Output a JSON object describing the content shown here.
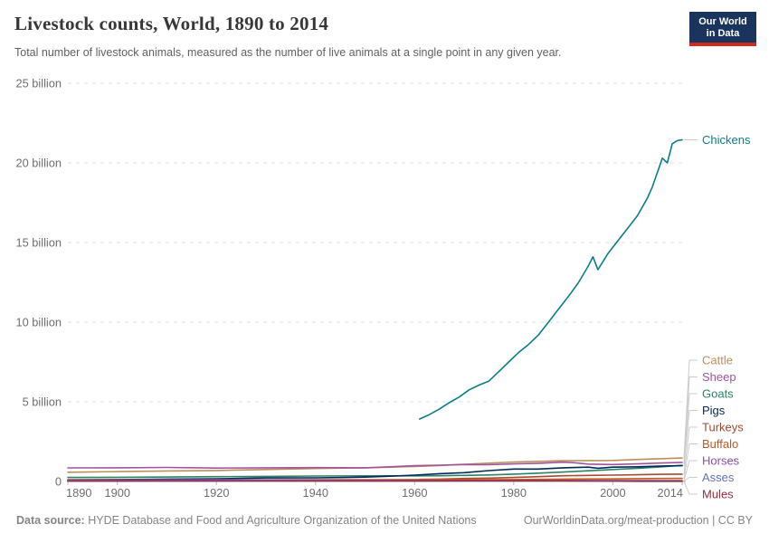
{
  "header": {
    "title": "Livestock counts, World, 1890 to 2014",
    "subtitle": "Total number of livestock animals, measured as the number of live animals at a single point in any given year.",
    "logo": {
      "line1": "Our World",
      "line2": "in Data",
      "bg_color": "#1A345D",
      "accent_color": "#CE2B1D"
    }
  },
  "footer": {
    "source_label": "Data source:",
    "source_text": " HYDE Database and Food and Agriculture Organization of the United Nations",
    "link_text": "OurWorldinData.org/meat-production | CC BY"
  },
  "chart_data": {
    "type": "line",
    "title": "Livestock counts, World, 1890 to 2014",
    "xlabel": "",
    "ylabel": "",
    "unit": "billion live animals",
    "grid": true,
    "legend_position": "right",
    "x_range": [
      1890,
      2014
    ],
    "y_range": [
      0,
      25
    ],
    "xticks": [
      1890,
      1900,
      1920,
      1940,
      1960,
      1980,
      2000,
      2014
    ],
    "yticks": [
      {
        "value": 0,
        "label": "0"
      },
      {
        "value": 5,
        "label": "5 billion"
      },
      {
        "value": 10,
        "label": "10 billion"
      },
      {
        "value": 15,
        "label": "15 billion"
      },
      {
        "value": 20,
        "label": "20 billion"
      },
      {
        "value": 25,
        "label": "25 billion"
      }
    ],
    "series": [
      {
        "name": "Chickens",
        "color": "#0B7E8A",
        "points": [
          [
            1961,
            3.92
          ],
          [
            1963,
            4.2
          ],
          [
            1965,
            4.55
          ],
          [
            1967,
            4.95
          ],
          [
            1969,
            5.3
          ],
          [
            1971,
            5.75
          ],
          [
            1973,
            6.05
          ],
          [
            1975,
            6.3
          ],
          [
            1977,
            6.9
          ],
          [
            1979,
            7.5
          ],
          [
            1981,
            8.1
          ],
          [
            1983,
            8.6
          ],
          [
            1985,
            9.2
          ],
          [
            1987,
            10.0
          ],
          [
            1989,
            10.8
          ],
          [
            1991,
            11.6
          ],
          [
            1993,
            12.45
          ],
          [
            1995,
            13.5
          ],
          [
            1996,
            14.1
          ],
          [
            1997,
            13.3
          ],
          [
            1999,
            14.3
          ],
          [
            2001,
            15.1
          ],
          [
            2003,
            15.9
          ],
          [
            2005,
            16.7
          ],
          [
            2007,
            17.8
          ],
          [
            2008,
            18.5
          ],
          [
            2009,
            19.4
          ],
          [
            2010,
            20.3
          ],
          [
            2011,
            20.0
          ],
          [
            2012,
            21.2
          ],
          [
            2013,
            21.4
          ],
          [
            2014,
            21.45
          ]
        ]
      },
      {
        "name": "Cattle",
        "color": "#BC8E5A",
        "points": [
          [
            1890,
            0.58
          ],
          [
            1900,
            0.62
          ],
          [
            1910,
            0.66
          ],
          [
            1920,
            0.69
          ],
          [
            1930,
            0.75
          ],
          [
            1940,
            0.81
          ],
          [
            1950,
            0.86
          ],
          [
            1960,
            0.94
          ],
          [
            1965,
            1.0
          ],
          [
            1970,
            1.08
          ],
          [
            1975,
            1.15
          ],
          [
            1980,
            1.22
          ],
          [
            1985,
            1.26
          ],
          [
            1990,
            1.3
          ],
          [
            1995,
            1.31
          ],
          [
            2000,
            1.32
          ],
          [
            2005,
            1.38
          ],
          [
            2010,
            1.43
          ],
          [
            2014,
            1.47
          ]
        ]
      },
      {
        "name": "Sheep",
        "color": "#A2559C",
        "points": [
          [
            1890,
            0.85
          ],
          [
            1900,
            0.86
          ],
          [
            1910,
            0.88
          ],
          [
            1920,
            0.84
          ],
          [
            1930,
            0.86
          ],
          [
            1940,
            0.87
          ],
          [
            1950,
            0.86
          ],
          [
            1955,
            0.92
          ],
          [
            1960,
            0.99
          ],
          [
            1965,
            1.02
          ],
          [
            1970,
            1.06
          ],
          [
            1975,
            1.05
          ],
          [
            1980,
            1.1
          ],
          [
            1985,
            1.14
          ],
          [
            1990,
            1.21
          ],
          [
            1992,
            1.18
          ],
          [
            1995,
            1.09
          ],
          [
            2000,
            1.06
          ],
          [
            2005,
            1.1
          ],
          [
            2010,
            1.16
          ],
          [
            2014,
            1.2
          ]
        ]
      },
      {
        "name": "Goats",
        "color": "#2C8465",
        "points": [
          [
            1890,
            0.25
          ],
          [
            1900,
            0.26
          ],
          [
            1910,
            0.28
          ],
          [
            1920,
            0.3
          ],
          [
            1930,
            0.32
          ],
          [
            1940,
            0.34
          ],
          [
            1950,
            0.35
          ],
          [
            1960,
            0.35
          ],
          [
            1965,
            0.36
          ],
          [
            1970,
            0.38
          ],
          [
            1975,
            0.41
          ],
          [
            1980,
            0.46
          ],
          [
            1985,
            0.52
          ],
          [
            1990,
            0.59
          ],
          [
            1995,
            0.67
          ],
          [
            2000,
            0.75
          ],
          [
            2005,
            0.83
          ],
          [
            2010,
            0.92
          ],
          [
            2014,
            1.01
          ]
        ]
      },
      {
        "name": "Pigs",
        "color": "#00295B",
        "points": [
          [
            1890,
            0.1
          ],
          [
            1900,
            0.12
          ],
          [
            1910,
            0.15
          ],
          [
            1920,
            0.17
          ],
          [
            1930,
            0.22
          ],
          [
            1940,
            0.23
          ],
          [
            1950,
            0.27
          ],
          [
            1955,
            0.33
          ],
          [
            1960,
            0.4
          ],
          [
            1965,
            0.49
          ],
          [
            1970,
            0.55
          ],
          [
            1975,
            0.68
          ],
          [
            1980,
            0.78
          ],
          [
            1985,
            0.78
          ],
          [
            1990,
            0.86
          ],
          [
            1995,
            0.9
          ],
          [
            1997,
            0.83
          ],
          [
            2000,
            0.9
          ],
          [
            2005,
            0.92
          ],
          [
            2010,
            0.97
          ],
          [
            2014,
            0.99
          ]
        ]
      },
      {
        "name": "Turkeys",
        "color": "#A44B35",
        "points": [
          [
            1961,
            0.13
          ],
          [
            1965,
            0.15
          ],
          [
            1970,
            0.19
          ],
          [
            1975,
            0.21
          ],
          [
            1980,
            0.25
          ],
          [
            1985,
            0.3
          ],
          [
            1990,
            0.36
          ],
          [
            1995,
            0.38
          ],
          [
            2000,
            0.4
          ],
          [
            2005,
            0.42
          ],
          [
            2010,
            0.45
          ],
          [
            2014,
            0.46
          ]
        ]
      },
      {
        "name": "Buffalo",
        "color": "#BF5B23",
        "points": [
          [
            1890,
            0.08
          ],
          [
            1900,
            0.085
          ],
          [
            1910,
            0.09
          ],
          [
            1920,
            0.1
          ],
          [
            1930,
            0.105
          ],
          [
            1940,
            0.11
          ],
          [
            1950,
            0.11
          ],
          [
            1960,
            0.12
          ],
          [
            1970,
            0.11
          ],
          [
            1980,
            0.12
          ],
          [
            1990,
            0.15
          ],
          [
            2000,
            0.16
          ],
          [
            2010,
            0.19
          ],
          [
            2014,
            0.195
          ]
        ]
      },
      {
        "name": "Horses",
        "color": "#8C4EB4",
        "points": [
          [
            1890,
            0.065
          ],
          [
            1900,
            0.075
          ],
          [
            1910,
            0.09
          ],
          [
            1920,
            0.1
          ],
          [
            1930,
            0.095
          ],
          [
            1940,
            0.08
          ],
          [
            1950,
            0.075
          ],
          [
            1960,
            0.065
          ],
          [
            1970,
            0.062
          ],
          [
            1980,
            0.059
          ],
          [
            1990,
            0.061
          ],
          [
            2000,
            0.058
          ],
          [
            2010,
            0.058
          ],
          [
            2014,
            0.059
          ]
        ]
      },
      {
        "name": "Asses",
        "color": "#6272B8",
        "points": [
          [
            1890,
            0.03
          ],
          [
            1900,
            0.032
          ],
          [
            1910,
            0.034
          ],
          [
            1920,
            0.036
          ],
          [
            1930,
            0.037
          ],
          [
            1940,
            0.038
          ],
          [
            1950,
            0.039
          ],
          [
            1960,
            0.04
          ],
          [
            1970,
            0.042
          ],
          [
            1980,
            0.04
          ],
          [
            1990,
            0.044
          ],
          [
            2000,
            0.044
          ],
          [
            2010,
            0.043
          ],
          [
            2014,
            0.043
          ]
        ]
      },
      {
        "name": "Mules",
        "color": "#9D2C3A",
        "points": [
          [
            1890,
            0.022
          ],
          [
            1900,
            0.024
          ],
          [
            1910,
            0.026
          ],
          [
            1920,
            0.028
          ],
          [
            1930,
            0.028
          ],
          [
            1940,
            0.029
          ],
          [
            1950,
            0.032
          ],
          [
            1960,
            0.035
          ],
          [
            1970,
            0.037
          ],
          [
            1980,
            0.038
          ],
          [
            1990,
            0.037
          ],
          [
            1995,
            0.03
          ],
          [
            2000,
            0.021
          ],
          [
            2005,
            0.013
          ],
          [
            2010,
            0.01
          ],
          [
            2014,
            0.01
          ]
        ]
      }
    ]
  }
}
